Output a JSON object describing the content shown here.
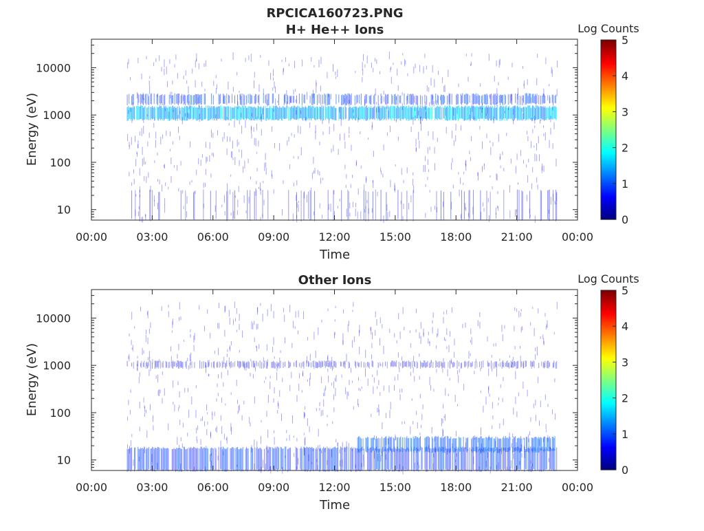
{
  "figure_title": "RPCICA160723.PNG",
  "chart_data": [
    {
      "type": "heatmap",
      "title": "H+ He++ Ions",
      "xlabel": "Time",
      "ylabel": "Energy (eV)",
      "x_tick_labels": [
        "00:00",
        "03:00",
        "06:00",
        "09:00",
        "12:00",
        "15:00",
        "18:00",
        "21:00",
        "00:00"
      ],
      "xlim_hours": [
        0,
        24
      ],
      "y_scale": "log",
      "y_tick_labels": [
        "10",
        "100",
        "1000",
        "10000"
      ],
      "y_tick_values": [
        10,
        100,
        1000,
        10000
      ],
      "ylim": [
        6,
        40000
      ],
      "colorbar": {
        "label": "Log Counts",
        "ticks": [
          "0",
          "1",
          "2",
          "3",
          "4",
          "5"
        ],
        "range": [
          0,
          5
        ],
        "colormap": "jet"
      },
      "data_coverage_hours": [
        1.75,
        23.0
      ],
      "bands": [
        {
          "energy_range_eV": [
            800,
            1500
          ],
          "log_counts": [
            1.0,
            2.0
          ],
          "density": 0.95
        },
        {
          "energy_range_eV": [
            1700,
            2700
          ],
          "log_counts": [
            0.5,
            1.2
          ],
          "density": 0.6
        },
        {
          "energy_range_eV": [
            6,
            25
          ],
          "log_counts": [
            0.2,
            0.8
          ],
          "density": 0.15
        }
      ]
    },
    {
      "type": "heatmap",
      "title": "Other Ions",
      "xlabel": "Time",
      "ylabel": "Energy (eV)",
      "x_tick_labels": [
        "00:00",
        "03:00",
        "06:00",
        "09:00",
        "12:00",
        "15:00",
        "18:00",
        "21:00",
        "00:00"
      ],
      "xlim_hours": [
        0,
        24
      ],
      "y_scale": "log",
      "y_tick_labels": [
        "10",
        "100",
        "1000",
        "10000"
      ],
      "y_tick_values": [
        10,
        100,
        1000,
        10000
      ],
      "ylim": [
        6,
        40000
      ],
      "colorbar": {
        "label": "Log Counts",
        "ticks": [
          "0",
          "1",
          "2",
          "3",
          "4",
          "5"
        ],
        "range": [
          0,
          5
        ],
        "colormap": "jet"
      },
      "data_coverage_hours": [
        1.75,
        23.0
      ],
      "bands": [
        {
          "energy_range_eV": [
            900,
            1200
          ],
          "log_counts": [
            0.2,
            0.7
          ],
          "density": 0.55
        },
        {
          "energy_range_eV": [
            6,
            18
          ],
          "log_counts": [
            0.5,
            1.2
          ],
          "density": 0.8
        },
        {
          "energy_range_eV": [
            15,
            30
          ],
          "log_counts": [
            0.8,
            1.3
          ],
          "density": 0.7,
          "hours": [
            13.0,
            23.0
          ]
        }
      ]
    }
  ]
}
